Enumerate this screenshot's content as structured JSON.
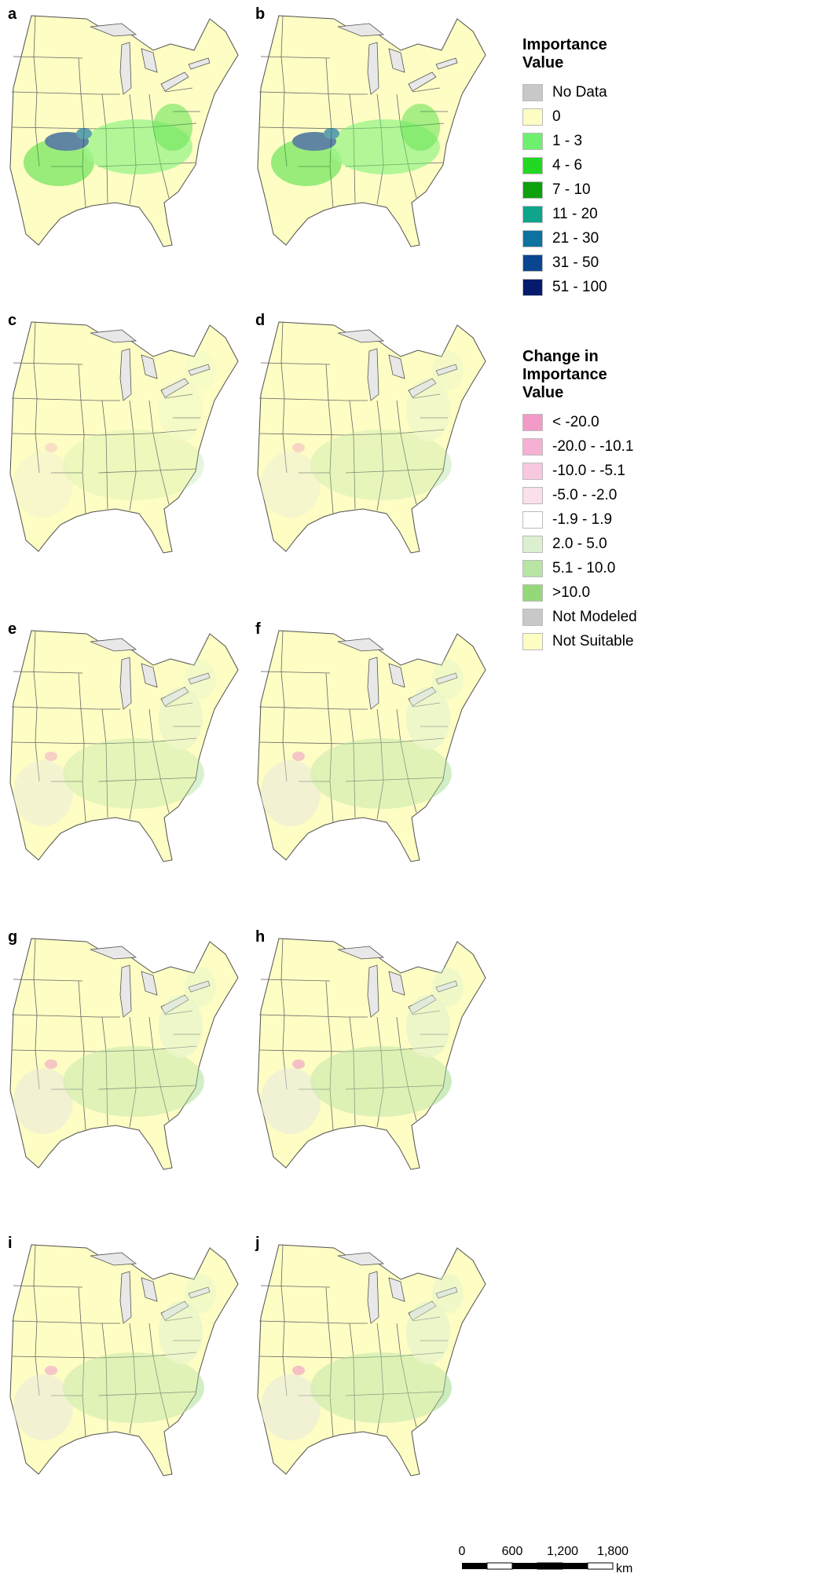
{
  "panels": [
    "a",
    "b",
    "c",
    "d",
    "e",
    "f",
    "g",
    "h",
    "i",
    "j"
  ],
  "legend": {
    "importance": {
      "title": "Importance Value",
      "items": [
        {
          "label": "No Data",
          "color": "#c8c8c8"
        },
        {
          "label": "0",
          "color": "#fdfdc4"
        },
        {
          "label": "1 - 3",
          "color": "#6ef06e"
        },
        {
          "label": "4 - 6",
          "color": "#22d822"
        },
        {
          "label": "7 - 10",
          "color": "#0ea10e"
        },
        {
          "label": "11 - 20",
          "color": "#0ea58c"
        },
        {
          "label": "21 - 30",
          "color": "#0c72a0"
        },
        {
          "label": "31 - 50",
          "color": "#0a4590"
        },
        {
          "label": "51 - 100",
          "color": "#061a6e"
        }
      ]
    },
    "change": {
      "title": "Change in Importance Value",
      "items": [
        {
          "label": "< -20.0",
          "color": "#f29ac8"
        },
        {
          "label": "-20.0 - -10.1",
          "color": "#f6b0d4"
        },
        {
          "label": "-10.0 - -5.1",
          "color": "#f8c8e0"
        },
        {
          "label": "-5.0 - -2.0",
          "color": "#fbdfec"
        },
        {
          "label": "-1.9 - 1.9",
          "color": "#ffffff"
        },
        {
          "label": "2.0 - 5.0",
          "color": "#dcf0d0"
        },
        {
          "label": "5.1 - 10.0",
          "color": "#b8e4a4"
        },
        {
          "label": ">10.0",
          "color": "#94d87a"
        },
        {
          "label": "Not Modeled",
          "color": "#c8c8c8"
        },
        {
          "label": "Not Suitable",
          "color": "#fdfdc4"
        }
      ]
    }
  },
  "scale_bar": {
    "labels": [
      "0",
      "600",
      "1,200",
      "1,800"
    ],
    "unit": "km"
  }
}
